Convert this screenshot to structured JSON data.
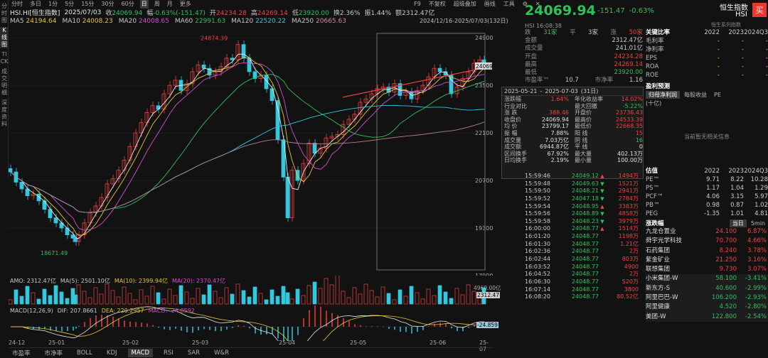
{
  "left_tabs": [
    "分时图",
    "K线图",
    "TICK",
    "成交明细",
    "深度资料"
  ],
  "toolbar": {
    "items": [
      "分时",
      "多日",
      "1分",
      "5分",
      "15分",
      "30分",
      "60分",
      "日",
      "周",
      "月",
      "更多"
    ],
    "active": "日",
    "right": [
      "F9",
      "不复权",
      "超级叠加",
      "画线",
      "工具"
    ]
  },
  "info": {
    "name": "HSI.HI[恒生指数]",
    "date": "2025/07/03",
    "close_label": "收",
    "close": "24069.94",
    "amp_label": "幅",
    "change": "-0.63%(-151.47)",
    "open_label": "开",
    "open": "24234.28",
    "high_label": "高",
    "high": "24269.14",
    "low_label": "低",
    "low": "23920.00",
    "turn_label": "换",
    "turnover_rate": "2.36%",
    "swing_label": "振",
    "swing": "1.44%",
    "amt_label": "额",
    "amount": "2312.47亿"
  },
  "ma": {
    "ma5_label": "MA5",
    "ma5": "24194.64",
    "ma10_label": "MA10",
    "ma10": "24008.23",
    "ma20_label": "MA20",
    "ma20": "24008.65",
    "ma60_label": "MA60",
    "ma60": "22991.63",
    "ma120_label": "MA120",
    "ma120": "22520.22",
    "ma250_label": "MA250",
    "ma250": "20665.63"
  },
  "range_label": "2024/12/16-2025/07/03(132日)",
  "chart": {
    "y_labels": [
      "24900",
      "23500",
      "22100",
      "20700",
      "19300",
      "17900"
    ],
    "current_price": "24069.9",
    "high_mark": "24874.39",
    "low_mark": "18671.49",
    "x_labels": [
      "24-12",
      "25-01",
      "25-02",
      "25-03",
      "25-04",
      "25-05",
      "25-06",
      "25-07"
    ]
  },
  "amo": {
    "label": "AMO: 2312.47亿",
    "ma5": "MA(5): 2501.10亿",
    "ma10": "MA(10): 2399.94亿",
    "ma20": "MA(20): 2370.47亿",
    "scale": "4960.00亿",
    "current": "2312.47"
  },
  "macd": {
    "label": "MACD(12,26,9)",
    "dif": "DIF: 207.8661",
    "dea": "DEA: 220.2957",
    "macd": "MACD: -24.8592",
    "current": "-24.859"
  },
  "bottom_tabs": [
    "市盈率",
    "市净率",
    "BOLL",
    "KDJ",
    "MACD",
    "RSI",
    "SAR",
    "W&R"
  ],
  "bottom_active": "MACD",
  "stats": {
    "from": "2025-05-21",
    "to": "2025-07-03",
    "days": "(31日)",
    "rows": [
      [
        "涨跌幅",
        "1.64%",
        "年化收益率",
        "14.02%"
      ],
      [
        "行业对比",
        "",
        "最大回撤",
        "-5.22%"
      ],
      [
        "涨 跌",
        "388.46",
        "开盘价",
        "23736.43"
      ],
      [
        "收盘价",
        "24069.94",
        "最高价",
        "24533.39"
      ],
      [
        "均 价",
        "23799.17",
        "最低价",
        "22668.35"
      ],
      [
        "振 幅",
        "7.88%",
        "阳 线",
        "15"
      ],
      [
        "成交量",
        "7.03万亿",
        "阴 线",
        "16"
      ],
      [
        "成交额",
        "6944.87亿",
        "平 线",
        "0"
      ],
      [
        "区间换手",
        "67.92%",
        "最大量",
        "402.13万"
      ],
      [
        "日均换手",
        "2.19%",
        "最小量",
        "100.00万"
      ]
    ]
  },
  "quote": {
    "price": "24069.94",
    "change": "-151.47",
    "pct": "-0.63%",
    "name": "恒生指数",
    "code": "HSI",
    "sub": "恒生系列指数",
    "time": "HSI 16:08:38",
    "breadth": [
      "跌",
      "31家",
      "平",
      "3家",
      "涨",
      "50家"
    ],
    "rows": [
      [
        "金额",
        "2312.47亿"
      ],
      [
        "成交量",
        "241.01亿"
      ],
      [
        "开盘",
        "24234.28"
      ],
      [
        "最高",
        "24269.14"
      ],
      [
        "最低",
        "23920.00"
      ]
    ],
    "pe_label": "市盈率™",
    "pe": "10.7",
    "pb_label": "市净率",
    "pb": "1.16"
  },
  "ticks": [
    [
      "15:59:46",
      "24049.12",
      "1494万"
    ],
    [
      "15:59:48",
      "24049.63",
      "1521万"
    ],
    [
      "15:59:50",
      "24048.21",
      "2941万"
    ],
    [
      "15:59:52",
      "24047.18",
      "2784万"
    ],
    [
      "15:59:54",
      "24048.95",
      "3383万"
    ],
    [
      "15:59:56",
      "24048.89",
      "4858万"
    ],
    [
      "15:59:58",
      "24048.23",
      "3979万"
    ],
    [
      "16:00:00",
      "24048.77",
      "1514万"
    ],
    [
      "16:01:20",
      "24048.77",
      "1198万"
    ],
    [
      "16:01:30",
      "24048.77",
      "1.21亿"
    ],
    [
      "16:02:36",
      "24048.77",
      "2万"
    ],
    [
      "16:02:44",
      "24048.77",
      "803万"
    ],
    [
      "16:03:52",
      "24048.77",
      "4900"
    ],
    [
      "16:04:52",
      "24048.77",
      "2万"
    ],
    [
      "16:06:30",
      "24048.77",
      "520万"
    ],
    [
      "16:07:14",
      "24048.77",
      "3800"
    ],
    [
      "16:08:20",
      "24048.77",
      "80.52亿"
    ]
  ],
  "fund": {
    "key_title": "关键比率",
    "years": [
      "2022",
      "2023",
      "2024Q3"
    ],
    "ratios": [
      "毛利率",
      "净利率",
      "EPS",
      "ROA",
      "ROE"
    ],
    "profit_title": "盈利预测",
    "tabs": [
      "归母净利润",
      "每股收益",
      "PE"
    ],
    "unit": "(十亿)",
    "empty": "当前暂无相关信息",
    "val_title": "估值",
    "val_rows": [
      [
        "PE™",
        "9.71",
        "8.22",
        "10.28"
      ],
      [
        "PS™",
        "1.17",
        "1.04",
        "1.29"
      ],
      [
        "PCF™",
        "4.06",
        "3.15",
        "5.97"
      ],
      [
        "PB™",
        "0.98",
        "0.87",
        "1.02"
      ],
      [
        "PEG",
        "-1.35",
        "1.01",
        "4.81"
      ]
    ],
    "movers_title": "涨跌幅",
    "movers_tabs": [
      "当日",
      "5min"
    ],
    "movers": [
      [
        "九龙仓置业",
        "24.100",
        "6.87%"
      ],
      [
        "舜宇光学科技",
        "70.700",
        "4.66%"
      ],
      [
        "石药集团",
        "8.240",
        "3.78%"
      ],
      [
        "紫金矿业",
        "21.250",
        "3.16%"
      ],
      [
        "联想集团",
        "9.730",
        "3.07%"
      ],
      [
        "小米集团-W",
        "58.100",
        "-3.41%"
      ],
      [
        "新东方-S",
        "40.600",
        "-2.99%"
      ],
      [
        "阿里巴巴-W",
        "106.200",
        "-2.93%"
      ],
      [
        "阿里健康",
        "4.520",
        "-2.80%"
      ],
      [
        "美团-W",
        "122.800",
        "-2.54%"
      ]
    ]
  }
}
